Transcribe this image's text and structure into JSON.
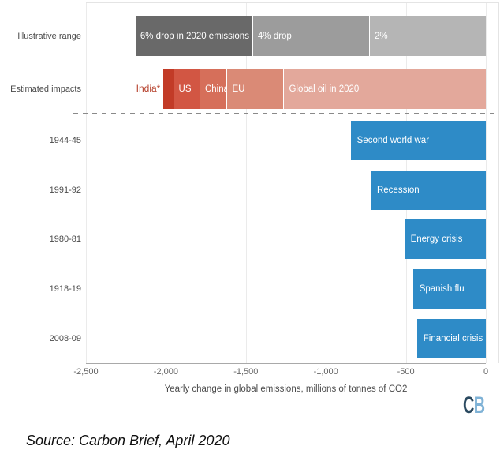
{
  "chart_data": {
    "type": "bar",
    "orientation": "horizontal",
    "xlabel": "Yearly change in global emissions, millions of tonnes of CO2",
    "xlim": [
      -2500,
      0
    ],
    "grid": "vertical-light",
    "legend": "none",
    "x_ticks": [
      {
        "label": "-2,500",
        "value": -2500
      },
      {
        "label": "-2,000",
        "value": -2000
      },
      {
        "label": "-1,500",
        "value": -1500
      },
      {
        "label": "-1,000",
        "value": -1000
      },
      {
        "label": "-500",
        "value": -500
      },
      {
        "label": "0",
        "value": 0
      }
    ],
    "categories": [
      "Illustrative range",
      "Estimated impacts",
      "1944-45",
      "1991-92",
      "1980-81",
      "1918-19",
      "2008-09"
    ],
    "rows": [
      {
        "kind": "stacked",
        "label": "Illustrative range",
        "segments": [
          {
            "text": "6% drop in 2020 emissions",
            "from": -2190,
            "to": -1460,
            "color": "#696969"
          },
          {
            "text": "4% drop",
            "from": -1460,
            "to": -730,
            "color": "#9c9c9c"
          },
          {
            "text": "2%",
            "from": -730,
            "to": 0,
            "color": "#b5b5b5"
          }
        ]
      },
      {
        "kind": "stacked",
        "label": "Estimated impacts",
        "segments": [
          {
            "text": "India*",
            "from": -2015,
            "to": -1955,
            "color": "#c23b27",
            "label_outside": true,
            "label_color": "#b5402b"
          },
          {
            "text": "US",
            "from": -1955,
            "to": -1790,
            "color": "#d25643"
          },
          {
            "text": "China",
            "from": -1790,
            "to": -1620,
            "color": "#d66f5a"
          },
          {
            "text": "EU",
            "from": -1620,
            "to": -1265,
            "color": "#da8a76"
          },
          {
            "text": "Global oil in 2020",
            "from": -1265,
            "to": 0,
            "color": "#e3a89b"
          }
        ]
      },
      {
        "kind": "bar",
        "label": "1944-45",
        "text": "Second world war",
        "value": -845,
        "color": "#2e8bc7"
      },
      {
        "kind": "bar",
        "label": "1991-92",
        "text": "Recession",
        "value": -720,
        "color": "#2e8bc7"
      },
      {
        "kind": "bar",
        "label": "1980-81",
        "text": "Energy crisis",
        "value": -510,
        "color": "#2e8bc7"
      },
      {
        "kind": "bar",
        "label": "1918-19",
        "text": "Spanish flu",
        "value": -455,
        "color": "#2e8bc7"
      },
      {
        "kind": "bar",
        "label": "2008-09",
        "text": "Financial crisis",
        "value": -430,
        "color": "#2e8bc7"
      }
    ]
  },
  "footer": {
    "source": "Source: Carbon Brief, April 2020",
    "logo": {
      "c": "C",
      "b": "B",
      "c_color": "#2b4a60",
      "b_color": "#7fb2d6"
    }
  }
}
